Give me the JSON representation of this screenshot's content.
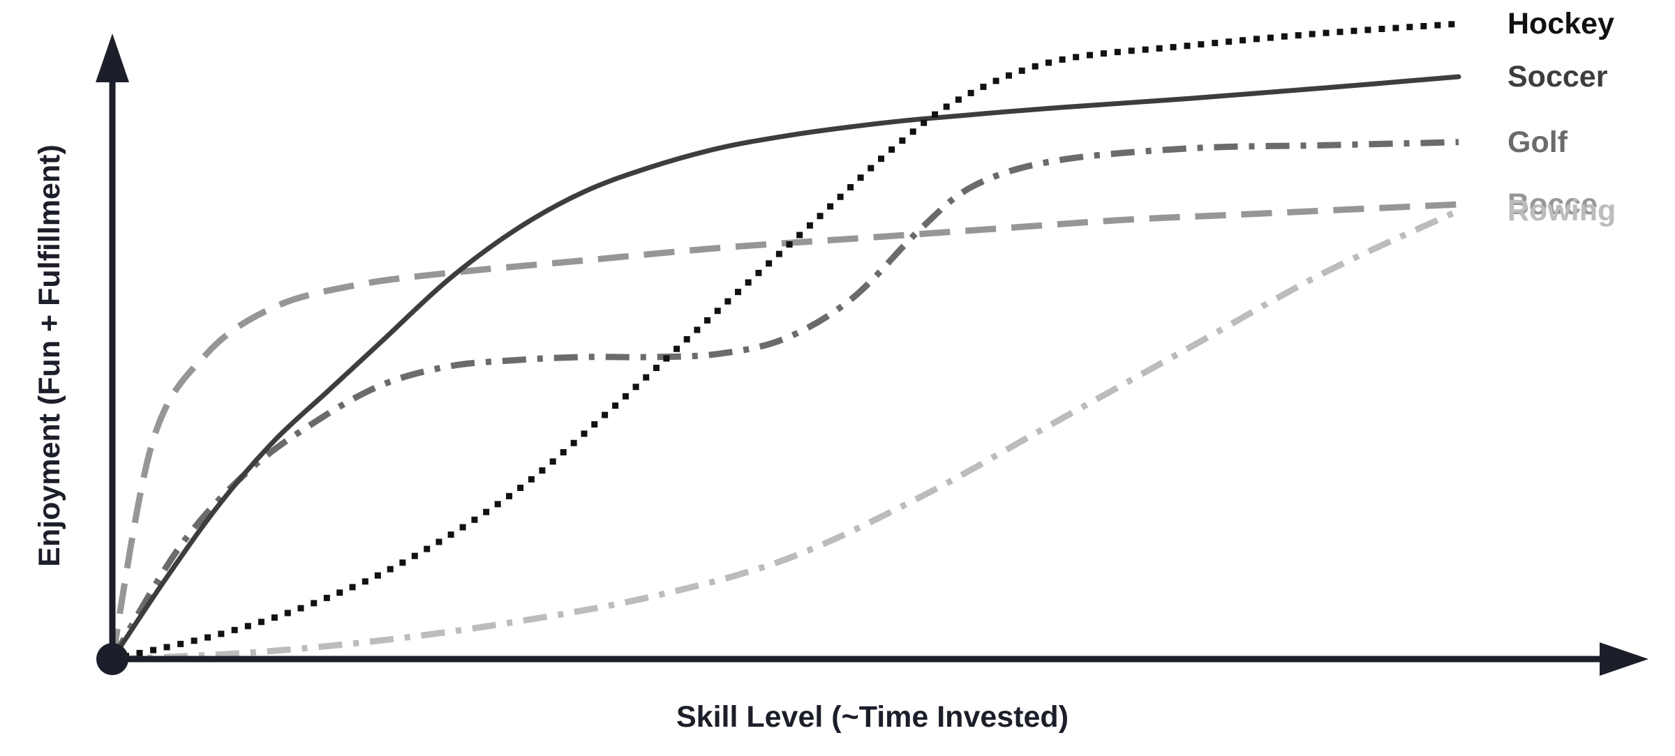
{
  "chart_data": {
    "type": "line",
    "xlabel": "Skill Level (~Time Invested)",
    "ylabel": "Enjoyment (Fun + Fulfillment)",
    "xlim": [
      0,
      100
    ],
    "ylim": [
      0,
      100
    ],
    "grid": false,
    "legend": "inline-right",
    "axis_color": "#1c1f2a",
    "series": [
      {
        "name": "Hockey",
        "color": "#111111",
        "style": "dotted",
        "x": [
          0,
          8,
          15,
          22,
          30,
          37,
          44,
          52,
          58,
          63,
          70,
          80,
          90,
          100
        ],
        "y": [
          0,
          4,
          9,
          16,
          27,
          40,
          54,
          70,
          82,
          90,
          96,
          98.5,
          100.5,
          102
        ]
      },
      {
        "name": "Soccer",
        "color": "#3d3d3d",
        "style": "solid",
        "x": [
          0,
          4,
          8,
          12,
          16,
          20,
          25,
          30,
          35,
          40,
          45,
          50,
          55,
          60,
          70,
          80,
          90,
          100
        ],
        "y": [
          0,
          13,
          25,
          35,
          43,
          51,
          61,
          69,
          75,
          79,
          82,
          84,
          85.5,
          86.7,
          88.5,
          90,
          91.7,
          93.5
        ]
      },
      {
        "name": "Golf",
        "color": "#6b6b6b",
        "style": "dash-dot",
        "x": [
          0,
          5,
          10,
          15,
          20,
          25,
          30,
          35,
          40,
          45,
          50,
          55,
          60,
          64,
          70,
          80,
          90,
          100
        ],
        "y": [
          0,
          18,
          30,
          38,
          44,
          47,
          48,
          48.5,
          48.5,
          49,
          51.5,
          58,
          69,
          76,
          80,
          82,
          82.5,
          83
        ]
      },
      {
        "name": "Bocce",
        "color": "#969696",
        "style": "dashed",
        "x": [
          0,
          3,
          7,
          12,
          18,
          25,
          35,
          45,
          55,
          65,
          75,
          85,
          100
        ],
        "y": [
          0,
          35,
          49,
          56.5,
          60,
          62,
          64,
          66,
          67.5,
          69,
          70.5,
          71.5,
          73
        ]
      },
      {
        "name": "Rowing",
        "color": "#bcbcbc",
        "style": "dash-dot",
        "x": [
          0,
          10,
          20,
          30,
          40,
          50,
          60,
          70,
          80,
          90,
          100
        ],
        "y": [
          0,
          1,
          3,
          6,
          10,
          16,
          26,
          38,
          50,
          62,
          72
        ]
      }
    ]
  }
}
